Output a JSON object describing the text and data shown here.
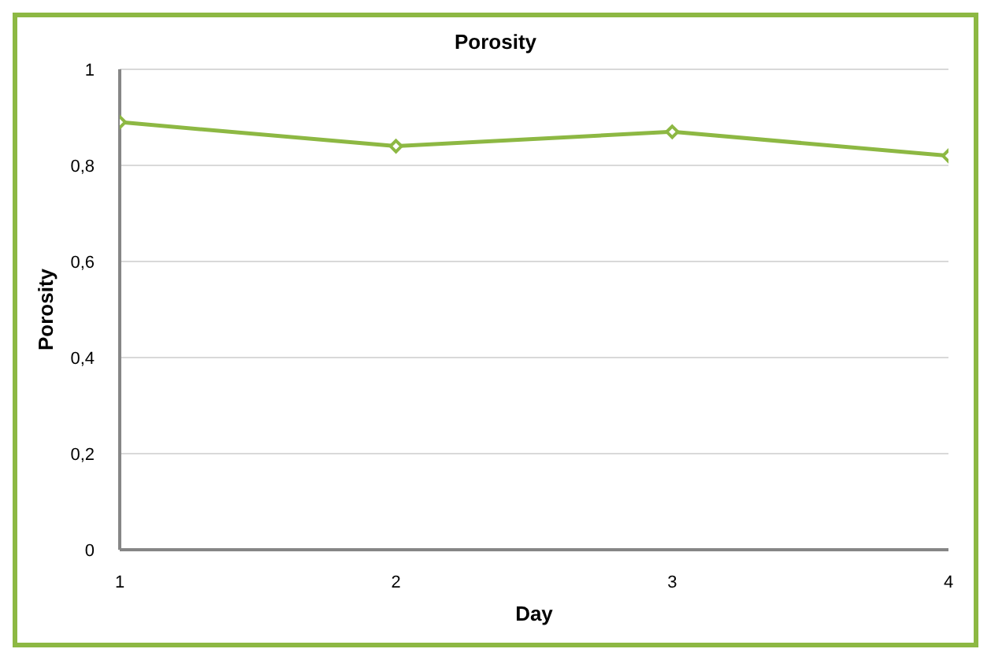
{
  "chart_data": {
    "type": "line",
    "title": "Porosity",
    "xlabel": "Day",
    "ylabel": "Porosity",
    "x": [
      1,
      2,
      3,
      4
    ],
    "series": [
      {
        "color": "#8db843",
        "values": [
          0.89,
          0.84,
          0.87,
          0.82
        ]
      }
    ],
    "xlim": [
      1,
      4
    ],
    "xticks": [
      1,
      2,
      3,
      4
    ],
    "ylim": [
      0,
      1
    ],
    "yticks": [
      0,
      {
        "value": 0.2,
        "label": "0,2"
      },
      {
        "value": 0.4,
        "label": "0,4"
      },
      {
        "value": 0.6,
        "label": "0,6"
      },
      {
        "value": 0.8,
        "label": "0,8"
      },
      1
    ],
    "grid": "y",
    "legend": false,
    "marker": "diamond",
    "line_style": "solid"
  }
}
